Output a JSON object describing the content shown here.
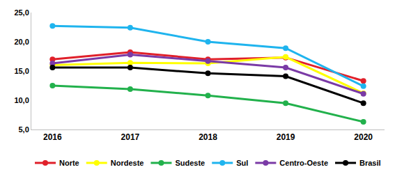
{
  "chart_data": {
    "type": "line",
    "categories": [
      "2016",
      "2017",
      "2018",
      "2019",
      "2020"
    ],
    "series": [
      {
        "name": "Norte",
        "color": "#e0202a",
        "values": [
          17.0,
          18.2,
          17.0,
          17.3,
          13.3
        ]
      },
      {
        "name": "Nordeste",
        "color": "#ffff00",
        "values": [
          16.0,
          16.4,
          16.3,
          17.4,
          11.2
        ]
      },
      {
        "name": "Sudeste",
        "color": "#22b14c",
        "values": [
          12.5,
          11.9,
          10.8,
          9.5,
          6.3
        ]
      },
      {
        "name": "Sul",
        "color": "#1fb4ee",
        "values": [
          22.7,
          22.4,
          20.0,
          18.9,
          12.4
        ]
      },
      {
        "name": "Centro-Oeste",
        "color": "#7a3aa6",
        "values": [
          16.3,
          17.8,
          16.7,
          15.6,
          11.1
        ]
      },
      {
        "name": "Brasil",
        "color": "#000000",
        "values": [
          15.6,
          15.6,
          14.6,
          14.1,
          9.5
        ]
      }
    ],
    "ylim": [
      5,
      25
    ],
    "yticks": [
      {
        "value": 5,
        "label": "5,0"
      },
      {
        "value": 10,
        "label": "10,0"
      },
      {
        "value": 15,
        "label": "15,0"
      },
      {
        "value": 20,
        "label": "20,0"
      },
      {
        "value": 25,
        "label": "25,0"
      }
    ],
    "grid": false,
    "legend": "bottom",
    "marker": "circle"
  }
}
